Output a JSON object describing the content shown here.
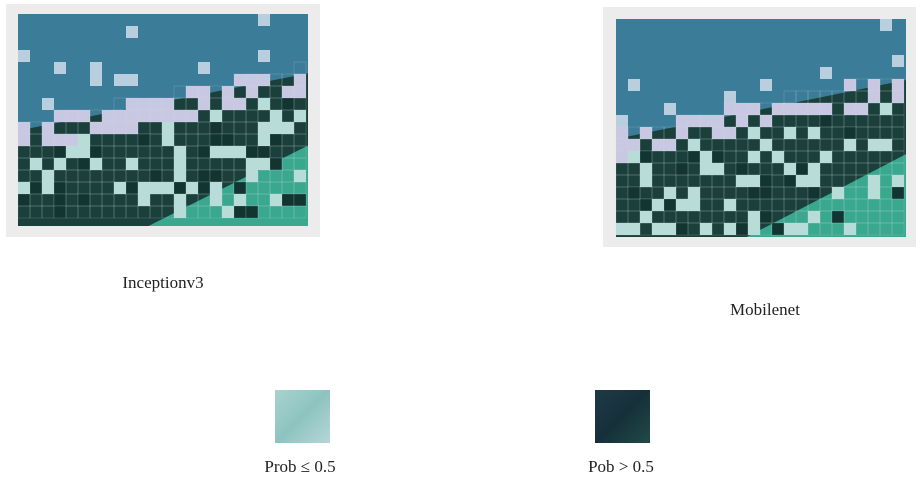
{
  "panels": [
    {
      "caption": "Inceptionv3"
    },
    {
      "caption": "Mobilenet"
    }
  ],
  "legend": [
    {
      "label": "Prob ≤ 0.5"
    },
    {
      "label": "Pob > 0.5"
    }
  ]
}
